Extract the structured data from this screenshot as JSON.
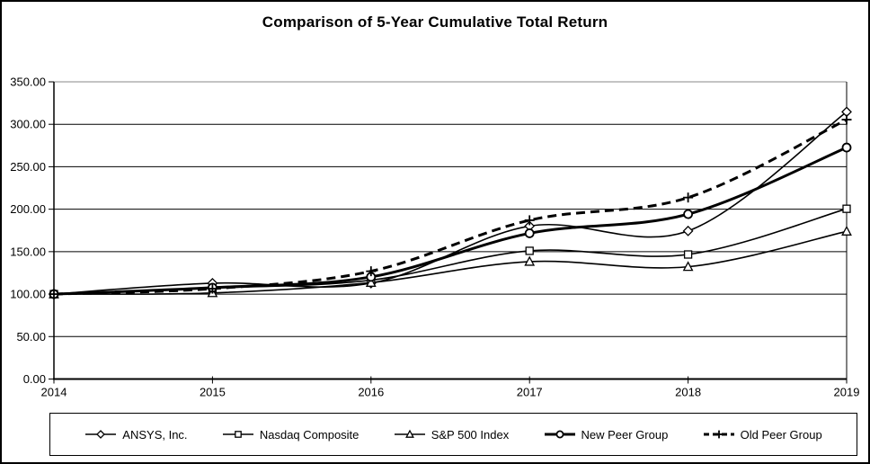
{
  "title": "Comparison of 5-Year Cumulative Total Return",
  "chart_data": {
    "type": "line",
    "x": [
      2014,
      2015,
      2016,
      2017,
      2018,
      2019
    ],
    "categories": [
      "2014",
      "2015",
      "2016",
      "2017",
      "2018",
      "2019"
    ],
    "series": [
      {
        "name": "ANSYS, Inc.",
        "marker": "diamond",
        "line": "thin-solid",
        "values": [
          100.0,
          112.87,
          112.89,
          180.13,
          174.38,
          314.65
        ]
      },
      {
        "name": "Nasdaq Composite",
        "marker": "square",
        "line": "thin-solid",
        "values": [
          100.0,
          106.96,
          116.45,
          150.96,
          146.67,
          200.49
        ]
      },
      {
        "name": "S&P 500 Index",
        "marker": "triangle",
        "line": "thin-solid",
        "values": [
          100.0,
          101.38,
          113.51,
          138.29,
          132.23,
          173.86
        ]
      },
      {
        "name": "New Peer Group",
        "marker": "circle",
        "line": "thick-solid",
        "values": [
          100.0,
          107.59,
          120.27,
          171.62,
          194.18,
          272.61
        ]
      },
      {
        "name": "Old Peer Group",
        "marker": "plus",
        "line": "thick-dashed",
        "values": [
          100.0,
          106.4,
          126.93,
          187.0,
          213.73,
          305.48
        ]
      }
    ],
    "ylim": [
      0,
      350
    ],
    "y_tick_step": 50,
    "y_tick_labels": [
      "0.00",
      "50.00",
      "100.00",
      "150.00",
      "200.00",
      "250.00",
      "300.00",
      "350.00"
    ],
    "grid": "horizontal",
    "legend_position": "bottom",
    "line_color": "#000000",
    "background": "#ffffff"
  }
}
